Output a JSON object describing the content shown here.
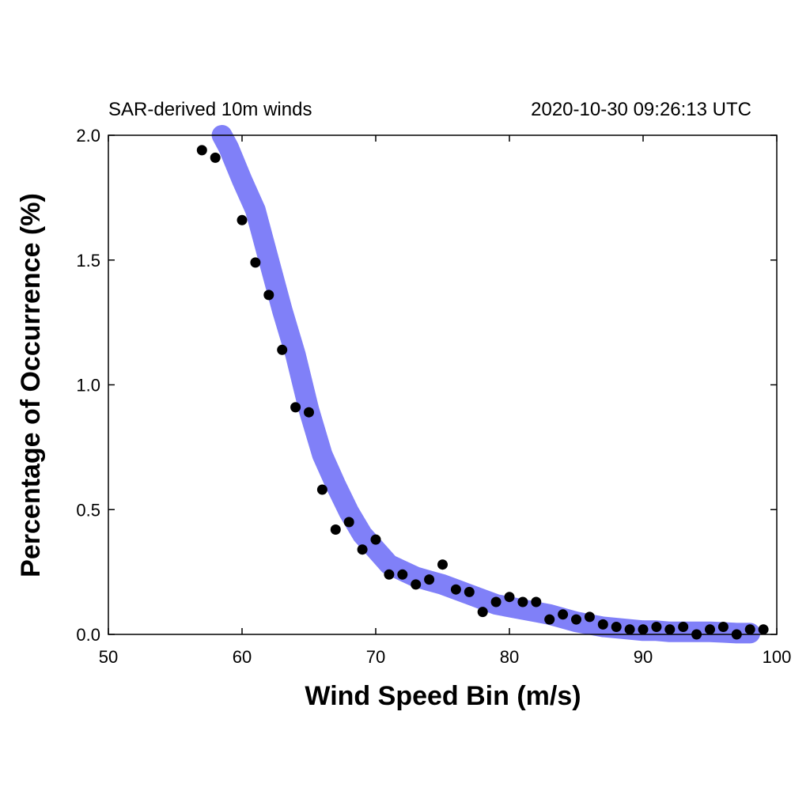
{
  "header": {
    "left_text": "SAR-derived 10m winds",
    "right_text": "2020-10-30 09:26:13 UTC"
  },
  "chart_data": {
    "type": "scatter",
    "xlabel": "Wind Speed Bin (m/s)",
    "ylabel": "Percentage of Occurrence (%)",
    "xlim": [
      50,
      100
    ],
    "ylim": [
      0,
      2.0
    ],
    "x_ticks": [
      "50",
      "60",
      "70",
      "80",
      "90",
      "100"
    ],
    "y_ticks": [
      "0.0",
      "0.5",
      "1.0",
      "1.5",
      "2.0"
    ],
    "grid": false,
    "legend": "none",
    "series": [
      {
        "kind": "smoothed-line",
        "color": "#8080f8",
        "x": [
          58.5,
          59,
          60,
          61,
          62,
          63,
          64,
          65,
          66,
          67,
          68,
          69,
          70,
          71,
          72,
          73,
          74,
          75,
          76,
          77,
          78,
          79,
          80,
          81,
          82,
          83,
          84,
          85,
          86,
          87,
          88,
          89,
          90,
          91,
          92,
          93,
          94,
          95,
          96,
          97,
          98
        ],
        "y": [
          2.0,
          1.95,
          1.82,
          1.7,
          1.5,
          1.3,
          1.12,
          0.9,
          0.72,
          0.6,
          0.49,
          0.4,
          0.34,
          0.28,
          0.255,
          0.23,
          0.215,
          0.2,
          0.18,
          0.16,
          0.14,
          0.12,
          0.11,
          0.1,
          0.09,
          0.08,
          0.065,
          0.05,
          0.04,
          0.03,
          0.025,
          0.02,
          0.015,
          0.015,
          0.01,
          0.01,
          0.01,
          0.01,
          0.008,
          0.005,
          0.005
        ]
      },
      {
        "kind": "points",
        "color": "#000000",
        "x": [
          57,
          58,
          60,
          61,
          62,
          63,
          64,
          65,
          66,
          67,
          68,
          69,
          70,
          71,
          72,
          73,
          74,
          75,
          76,
          77,
          78,
          79,
          80,
          81,
          82,
          83,
          84,
          85,
          86,
          87,
          88,
          89,
          90,
          91,
          92,
          93,
          94,
          95,
          96,
          97,
          98,
          99
        ],
        "y": [
          1.94,
          1.91,
          1.66,
          1.49,
          1.36,
          1.14,
          0.91,
          0.89,
          0.58,
          0.42,
          0.45,
          0.34,
          0.38,
          0.24,
          0.24,
          0.2,
          0.22,
          0.28,
          0.18,
          0.17,
          0.09,
          0.13,
          0.15,
          0.13,
          0.13,
          0.06,
          0.08,
          0.06,
          0.07,
          0.04,
          0.03,
          0.02,
          0.02,
          0.03,
          0.02,
          0.03,
          0.0,
          0.02,
          0.03,
          0.0,
          0.02,
          0.02
        ]
      }
    ]
  }
}
